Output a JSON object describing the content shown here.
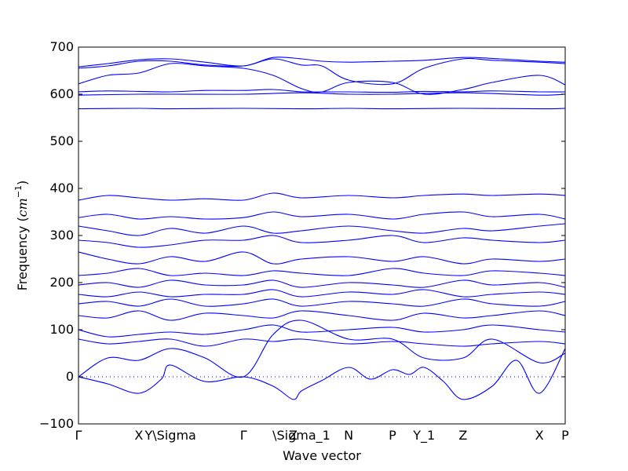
{
  "chart_data": {
    "type": "line",
    "xlabel": "Wave vector",
    "ylabel_prefix": "Frequency (",
    "ylabel_unit_base": "cm",
    "ylabel_unit_exp": "−1",
    "ylabel_suffix": ")",
    "ylim": [
      -100,
      700
    ],
    "yticks": [
      -100,
      0,
      100,
      200,
      300,
      400,
      500,
      600,
      700
    ],
    "xlim": [
      0,
      1
    ],
    "kpath_labels": [
      {
        "label": "Γ",
        "x": 0.0
      },
      {
        "label": "X",
        "x": 0.124
      },
      {
        "label": "Y\\Sigma",
        "x": 0.189
      },
      {
        "label": "Γ",
        "x": 0.339
      },
      {
        "label": "Z",
        "x": 0.441
      },
      {
        "label": "\\Sigma_1",
        "x": 0.458
      },
      {
        "label": "N",
        "x": 0.555
      },
      {
        "label": "P",
        "x": 0.645
      },
      {
        "label": "Y_1",
        "x": 0.71
      },
      {
        "label": "Z",
        "x": 0.79
      },
      {
        "label": "X",
        "x": 0.947
      },
      {
        "label": "P",
        "x": 1.0
      }
    ],
    "zero_line": true,
    "series_color": "#0000ff",
    "series": [
      {
        "x": [
          0,
          0.06,
          0.124,
          0.17,
          0.189,
          0.26,
          0.339,
          0.4,
          0.441,
          0.458,
          0.5,
          0.555,
          0.6,
          0.645,
          0.68,
          0.71,
          0.75,
          0.79,
          0.85,
          0.9,
          0.947,
          1.0
        ],
        "y": [
          0,
          -15,
          -35,
          -5,
          25,
          -10,
          0,
          -20,
          -48,
          -30,
          -8,
          20,
          -5,
          15,
          5,
          20,
          -10,
          -48,
          -20,
          35,
          -35,
          60
        ]
      },
      {
        "x": [
          0,
          0.06,
          0.124,
          0.189,
          0.26,
          0.339,
          0.4,
          0.458,
          0.555,
          0.645,
          0.71,
          0.79,
          0.85,
          0.947,
          1.0
        ],
        "y": [
          0,
          40,
          35,
          60,
          40,
          0,
          90,
          120,
          80,
          80,
          40,
          40,
          80,
          30,
          50
        ]
      },
      {
        "x": [
          0,
          0.06,
          0.124,
          0.189,
          0.26,
          0.339,
          0.4,
          0.458,
          0.555,
          0.645,
          0.71,
          0.79,
          0.85,
          0.947,
          1.0
        ],
        "y": [
          80,
          70,
          75,
          80,
          65,
          80,
          75,
          80,
          70,
          75,
          70,
          65,
          70,
          75,
          70
        ]
      },
      {
        "x": [
          0,
          0.06,
          0.124,
          0.189,
          0.26,
          0.339,
          0.4,
          0.458,
          0.555,
          0.645,
          0.71,
          0.79,
          0.85,
          0.947,
          1.0
        ],
        "y": [
          100,
          85,
          90,
          95,
          90,
          100,
          110,
          95,
          100,
          105,
          95,
          100,
          110,
          100,
          95
        ]
      },
      {
        "x": [
          0,
          0.06,
          0.124,
          0.189,
          0.26,
          0.339,
          0.4,
          0.458,
          0.555,
          0.645,
          0.71,
          0.79,
          0.85,
          0.947,
          1.0
        ],
        "y": [
          130,
          125,
          140,
          120,
          135,
          130,
          125,
          140,
          130,
          120,
          135,
          125,
          130,
          140,
          130
        ]
      },
      {
        "x": [
          0,
          0.06,
          0.124,
          0.189,
          0.26,
          0.339,
          0.4,
          0.458,
          0.555,
          0.645,
          0.71,
          0.79,
          0.85,
          0.947,
          1.0
        ],
        "y": [
          155,
          160,
          150,
          165,
          150,
          155,
          165,
          150,
          160,
          155,
          150,
          165,
          155,
          150,
          160
        ]
      },
      {
        "x": [
          0,
          0.06,
          0.124,
          0.189,
          0.26,
          0.339,
          0.4,
          0.458,
          0.555,
          0.645,
          0.71,
          0.79,
          0.85,
          0.947,
          1.0
        ],
        "y": [
          175,
          170,
          180,
          170,
          175,
          175,
          185,
          170,
          180,
          175,
          185,
          170,
          175,
          180,
          175
        ]
      },
      {
        "x": [
          0,
          0.06,
          0.124,
          0.189,
          0.26,
          0.339,
          0.4,
          0.458,
          0.555,
          0.645,
          0.71,
          0.79,
          0.85,
          0.947,
          1.0
        ],
        "y": [
          195,
          200,
          190,
          205,
          195,
          195,
          205,
          190,
          200,
          195,
          190,
          205,
          195,
          200,
          190
        ]
      },
      {
        "x": [
          0,
          0.06,
          0.124,
          0.189,
          0.26,
          0.339,
          0.4,
          0.458,
          0.555,
          0.645,
          0.71,
          0.79,
          0.85,
          0.947,
          1.0
        ],
        "y": [
          215,
          220,
          230,
          215,
          220,
          215,
          225,
          220,
          215,
          230,
          220,
          215,
          225,
          220,
          215
        ]
      },
      {
        "x": [
          0,
          0.06,
          0.124,
          0.189,
          0.26,
          0.339,
          0.4,
          0.458,
          0.555,
          0.645,
          0.71,
          0.79,
          0.85,
          0.947,
          1.0
        ],
        "y": [
          265,
          250,
          240,
          255,
          245,
          265,
          240,
          250,
          255,
          245,
          255,
          240,
          250,
          245,
          250
        ]
      },
      {
        "x": [
          0,
          0.06,
          0.124,
          0.189,
          0.26,
          0.339,
          0.4,
          0.458,
          0.555,
          0.645,
          0.71,
          0.79,
          0.85,
          0.947,
          1.0
        ],
        "y": [
          290,
          285,
          275,
          280,
          290,
          290,
          300,
          285,
          290,
          300,
          285,
          295,
          290,
          285,
          290
        ]
      },
      {
        "x": [
          0,
          0.06,
          0.124,
          0.189,
          0.26,
          0.339,
          0.4,
          0.458,
          0.555,
          0.645,
          0.71,
          0.79,
          0.85,
          0.947,
          1.0
        ],
        "y": [
          320,
          310,
          300,
          315,
          305,
          320,
          305,
          310,
          320,
          310,
          305,
          315,
          310,
          320,
          325
        ]
      },
      {
        "x": [
          0,
          0.06,
          0.124,
          0.189,
          0.26,
          0.339,
          0.4,
          0.458,
          0.555,
          0.645,
          0.71,
          0.79,
          0.85,
          0.947,
          1.0
        ],
        "y": [
          338,
          345,
          335,
          340,
          335,
          338,
          350,
          340,
          345,
          335,
          345,
          350,
          340,
          345,
          335
        ]
      },
      {
        "x": [
          0,
          0.06,
          0.124,
          0.189,
          0.26,
          0.339,
          0.4,
          0.458,
          0.555,
          0.645,
          0.71,
          0.79,
          0.85,
          0.947,
          1.0
        ],
        "y": [
          375,
          385,
          380,
          375,
          378,
          375,
          390,
          380,
          385,
          380,
          385,
          388,
          385,
          388,
          385
        ]
      },
      {
        "x": [
          0,
          0.124,
          0.189,
          0.339,
          0.458,
          0.555,
          0.645,
          0.79,
          0.947,
          1.0
        ],
        "y": [
          569,
          570,
          569,
          570,
          569,
          570,
          569,
          570,
          569,
          570
        ]
      },
      {
        "x": [
          0,
          0.124,
          0.189,
          0.339,
          0.458,
          0.555,
          0.645,
          0.79,
          0.947,
          1.0
        ],
        "y": [
          598,
          600,
          600,
          600,
          603,
          600,
          600,
          603,
          598,
          600
        ]
      },
      {
        "x": [
          0,
          0.06,
          0.124,
          0.189,
          0.26,
          0.339,
          0.4,
          0.458,
          0.5,
          0.555,
          0.645,
          0.71,
          0.79,
          0.85,
          0.947,
          1.0
        ],
        "y": [
          605,
          607,
          606,
          605,
          608,
          608,
          610,
          605,
          605,
          605,
          604,
          606,
          605,
          607,
          605,
          605
        ]
      },
      {
        "x": [
          0,
          0.06,
          0.124,
          0.189,
          0.26,
          0.339,
          0.4,
          0.458,
          0.5,
          0.555,
          0.645,
          0.71,
          0.79,
          0.85,
          0.947,
          1.0
        ],
        "y": [
          622,
          640,
          645,
          665,
          660,
          655,
          640,
          612,
          605,
          625,
          625,
          600,
          610,
          625,
          640,
          620
        ]
      },
      {
        "x": [
          0,
          0.06,
          0.124,
          0.189,
          0.26,
          0.339,
          0.4,
          0.458,
          0.5,
          0.555,
          0.645,
          0.71,
          0.79,
          0.85,
          0.947,
          1.0
        ],
        "y": [
          655,
          660,
          670,
          670,
          662,
          660,
          675,
          662,
          660,
          630,
          622,
          655,
          675,
          672,
          668,
          665
        ]
      },
      {
        "x": [
          0,
          0.06,
          0.124,
          0.189,
          0.26,
          0.339,
          0.4,
          0.458,
          0.5,
          0.555,
          0.645,
          0.71,
          0.79,
          0.85,
          0.947,
          1.0
        ],
        "y": [
          658,
          665,
          673,
          675,
          668,
          660,
          678,
          675,
          670,
          668,
          670,
          672,
          678,
          676,
          670,
          668
        ]
      }
    ]
  }
}
